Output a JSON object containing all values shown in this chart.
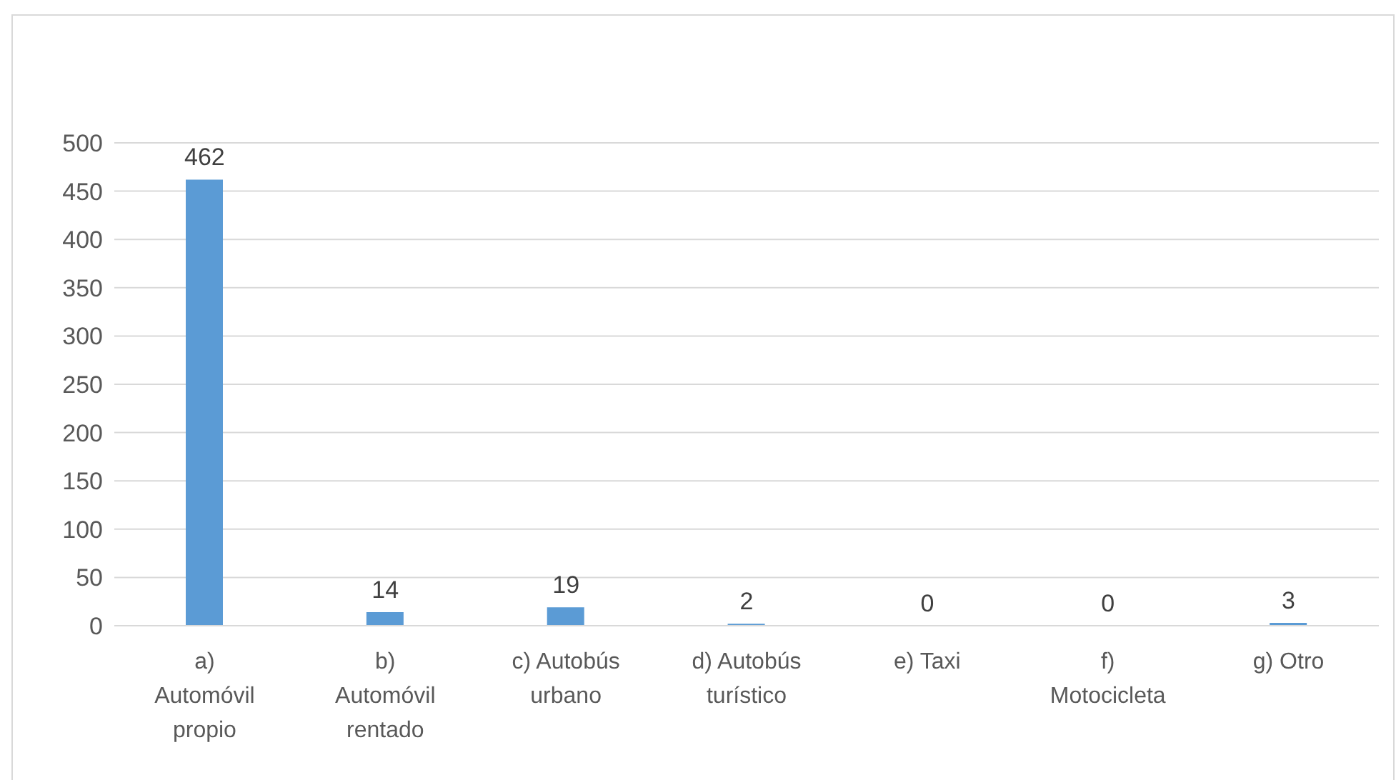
{
  "chart_data": {
    "type": "bar",
    "categories": [
      "a) Automóvil propio",
      "b) Automóvil rentado",
      "c) Autobús urbano",
      "d) Autobús turístico",
      "e) Taxi",
      "f) Motocicleta",
      "g) Otro"
    ],
    "values": [
      462,
      14,
      19,
      2,
      0,
      0,
      3
    ],
    "color": "#5b9bd5",
    "ylim": [
      0,
      500
    ],
    "yticks": [
      0,
      50,
      100,
      150,
      200,
      250,
      300,
      350,
      400,
      450,
      500
    ],
    "grid": "y",
    "data_labels": true
  }
}
